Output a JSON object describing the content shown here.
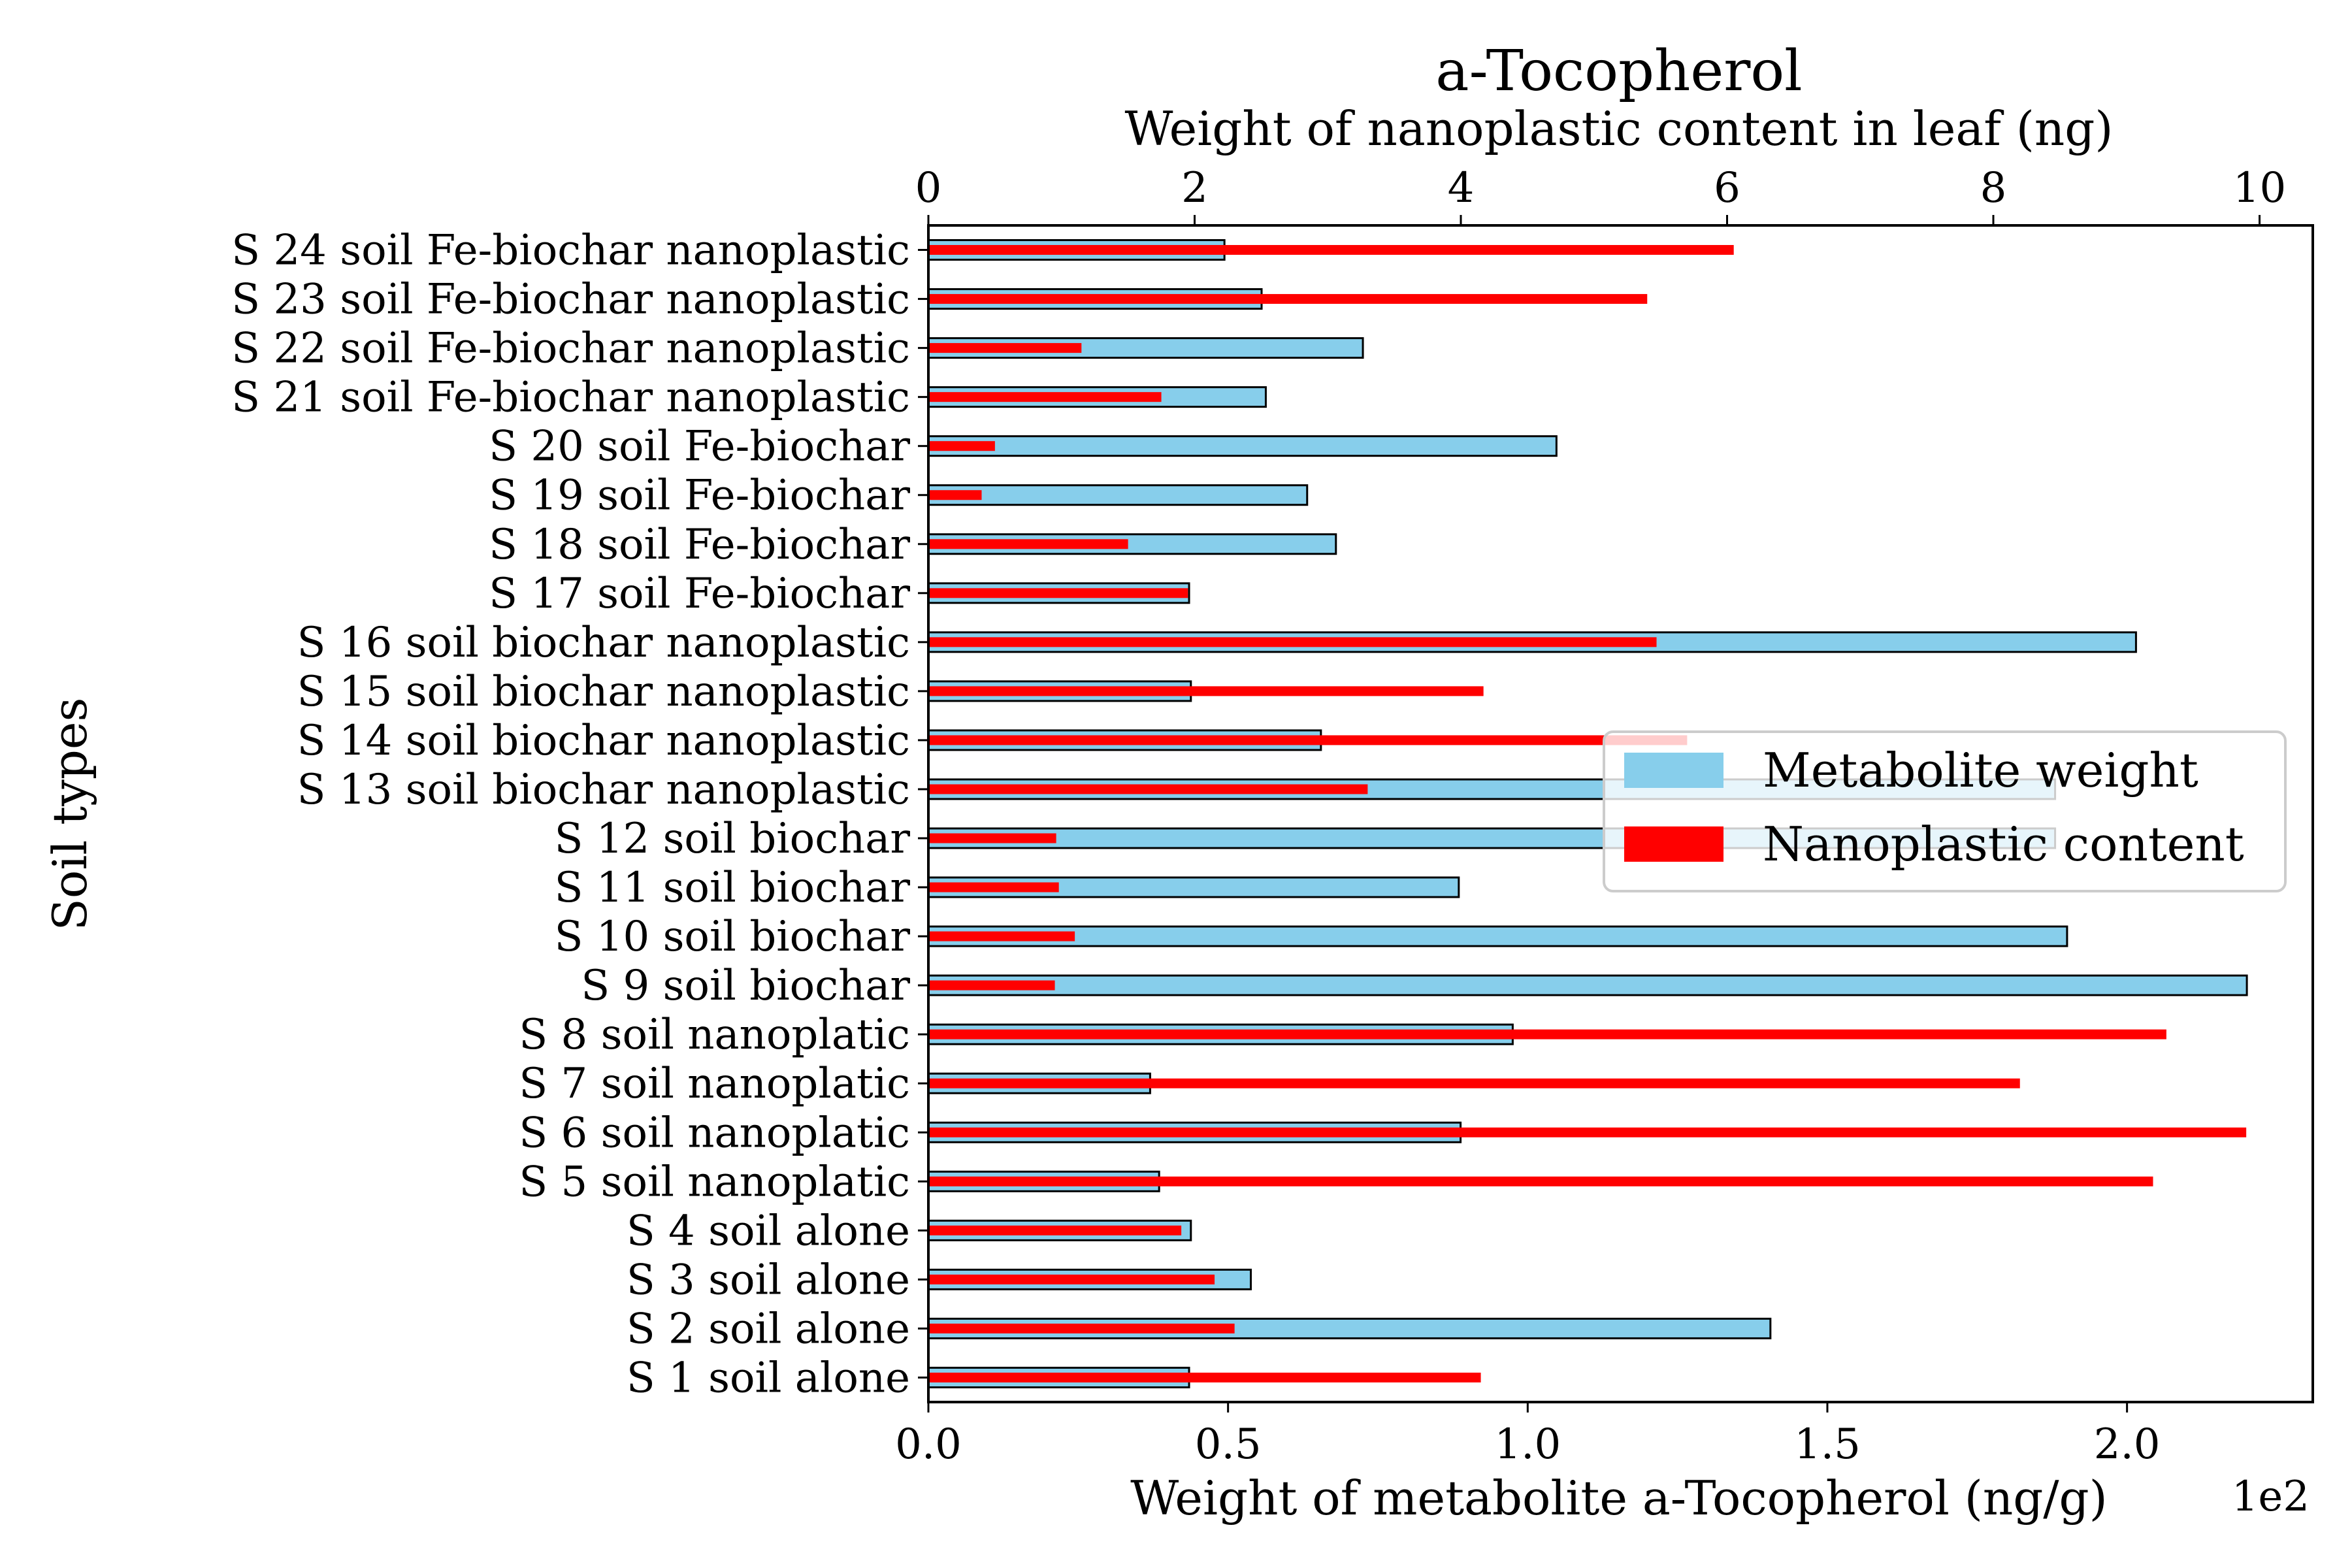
{
  "chart_data": {
    "type": "bar",
    "orientation": "horizontal",
    "title": "a-Tocopherol",
    "title_color": "#a52a2a",
    "ylabel": "Soil types",
    "xlabel_bottom": "Weight of metabolite a-Tocopherol (ng/g)",
    "xlabel_top": "Weight of nanoplastic content in leaf (ng)",
    "bottom_offset_label": "1e2",
    "bottom_axis": {
      "range": [
        0,
        2.31
      ],
      "ticks": [
        0.0,
        0.5,
        1.0,
        1.5,
        2.0
      ],
      "tick_labels": [
        "0.0",
        "0.5",
        "1.0",
        "1.5",
        "2.0"
      ]
    },
    "top_axis": {
      "range": [
        0,
        10.4
      ],
      "ticks": [
        0,
        2,
        4,
        6,
        8,
        10
      ],
      "tick_labels": [
        "0",
        "2",
        "4",
        "6",
        "8",
        "10"
      ]
    },
    "categories": [
      "S 1 soil alone",
      "S 2 soil alone",
      "S 3 soil alone",
      "S 4 soil alone",
      "S 5 soil nanoplatic",
      "S 6 soil nanoplatic",
      "S 7 soil nanoplatic",
      "S 8 soil nanoplatic",
      "S 9 soil biochar",
      "S 10 soil biochar",
      "S 11 soil biochar",
      "S 12 soil biochar",
      "S 13 soil biochar nanoplastic",
      "S 14 soil biochar nanoplastic",
      "S 15 soil biochar nanoplastic",
      "S 16 soil biochar nanoplastic",
      "S 17 soil Fe-biochar",
      "S 18 soil Fe-biochar",
      "S 19 soil Fe-biochar",
      "S 20 soil Fe-biochar",
      "S 21 soil Fe-biochar nanoplastic",
      "S 22 soil Fe-biochar nanoplastic",
      "S 23 soil Fe-biochar nanoplastic",
      "S 24 soil Fe-biochar nanoplastic"
    ],
    "series": [
      {
        "name": "Metabolite weight",
        "axis": "bottom",
        "color": "#87ceeb",
        "edge_color": "#000000",
        "values": [
          0.435,
          1.405,
          0.538,
          0.438,
          0.385,
          0.888,
          0.37,
          0.975,
          2.2,
          1.9,
          0.885,
          1.88,
          1.88,
          0.655,
          0.438,
          2.015,
          0.435,
          0.68,
          0.632,
          1.048,
          0.563,
          0.725,
          0.556,
          0.494
        ]
      },
      {
        "name": "Nanoplastic content",
        "axis": "top",
        "color": "#ff0000",
        "values": [
          4.15,
          2.3,
          2.15,
          1.9,
          9.2,
          9.9,
          8.2,
          9.3,
          0.95,
          1.1,
          0.98,
          0.96,
          3.3,
          5.7,
          4.17,
          5.47,
          1.95,
          1.5,
          0.4,
          0.5,
          1.75,
          1.15,
          5.4,
          6.05
        ]
      }
    ],
    "legend": {
      "placement": "center-right",
      "entries": [
        "Metabolite weight",
        "Nanoplastic content"
      ]
    }
  }
}
